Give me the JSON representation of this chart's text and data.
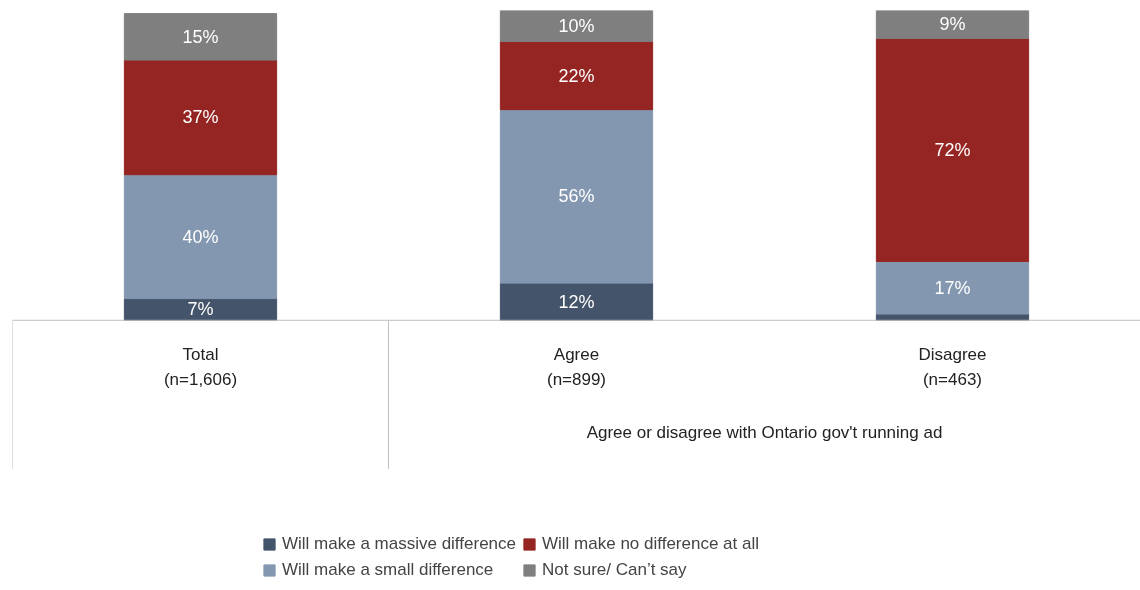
{
  "chart_data": {
    "type": "bar",
    "stacked": true,
    "categories": [
      "Total\n(n=1,606)",
      "Agree\n(n=899)",
      "Disagree\n(n=463)"
    ],
    "series": [
      {
        "name": "Will make a massive difference",
        "color": "#44546a",
        "values": [
          7,
          12,
          2
        ],
        "value_labels": [
          "7%",
          "12%",
          null
        ]
      },
      {
        "name": "Will make a small difference",
        "color": "#8497b0",
        "values": [
          40,
          56,
          17
        ],
        "value_labels": [
          "40%",
          "56%",
          "17%"
        ]
      },
      {
        "name": "Will make no difference at all",
        "color": "#952522",
        "values": [
          37,
          22,
          72
        ],
        "value_labels": [
          "37%",
          "22%",
          "72%"
        ]
      },
      {
        "name": "Not sure/ Can’t say",
        "color": "#7f7f7f",
        "values": [
          15,
          10,
          9
        ],
        "value_labels": [
          "15%",
          "10%",
          "9%"
        ]
      }
    ],
    "annotations": [
      "Agree or disagree with Ontario gov't running ad"
    ],
    "legend": "bottom"
  }
}
